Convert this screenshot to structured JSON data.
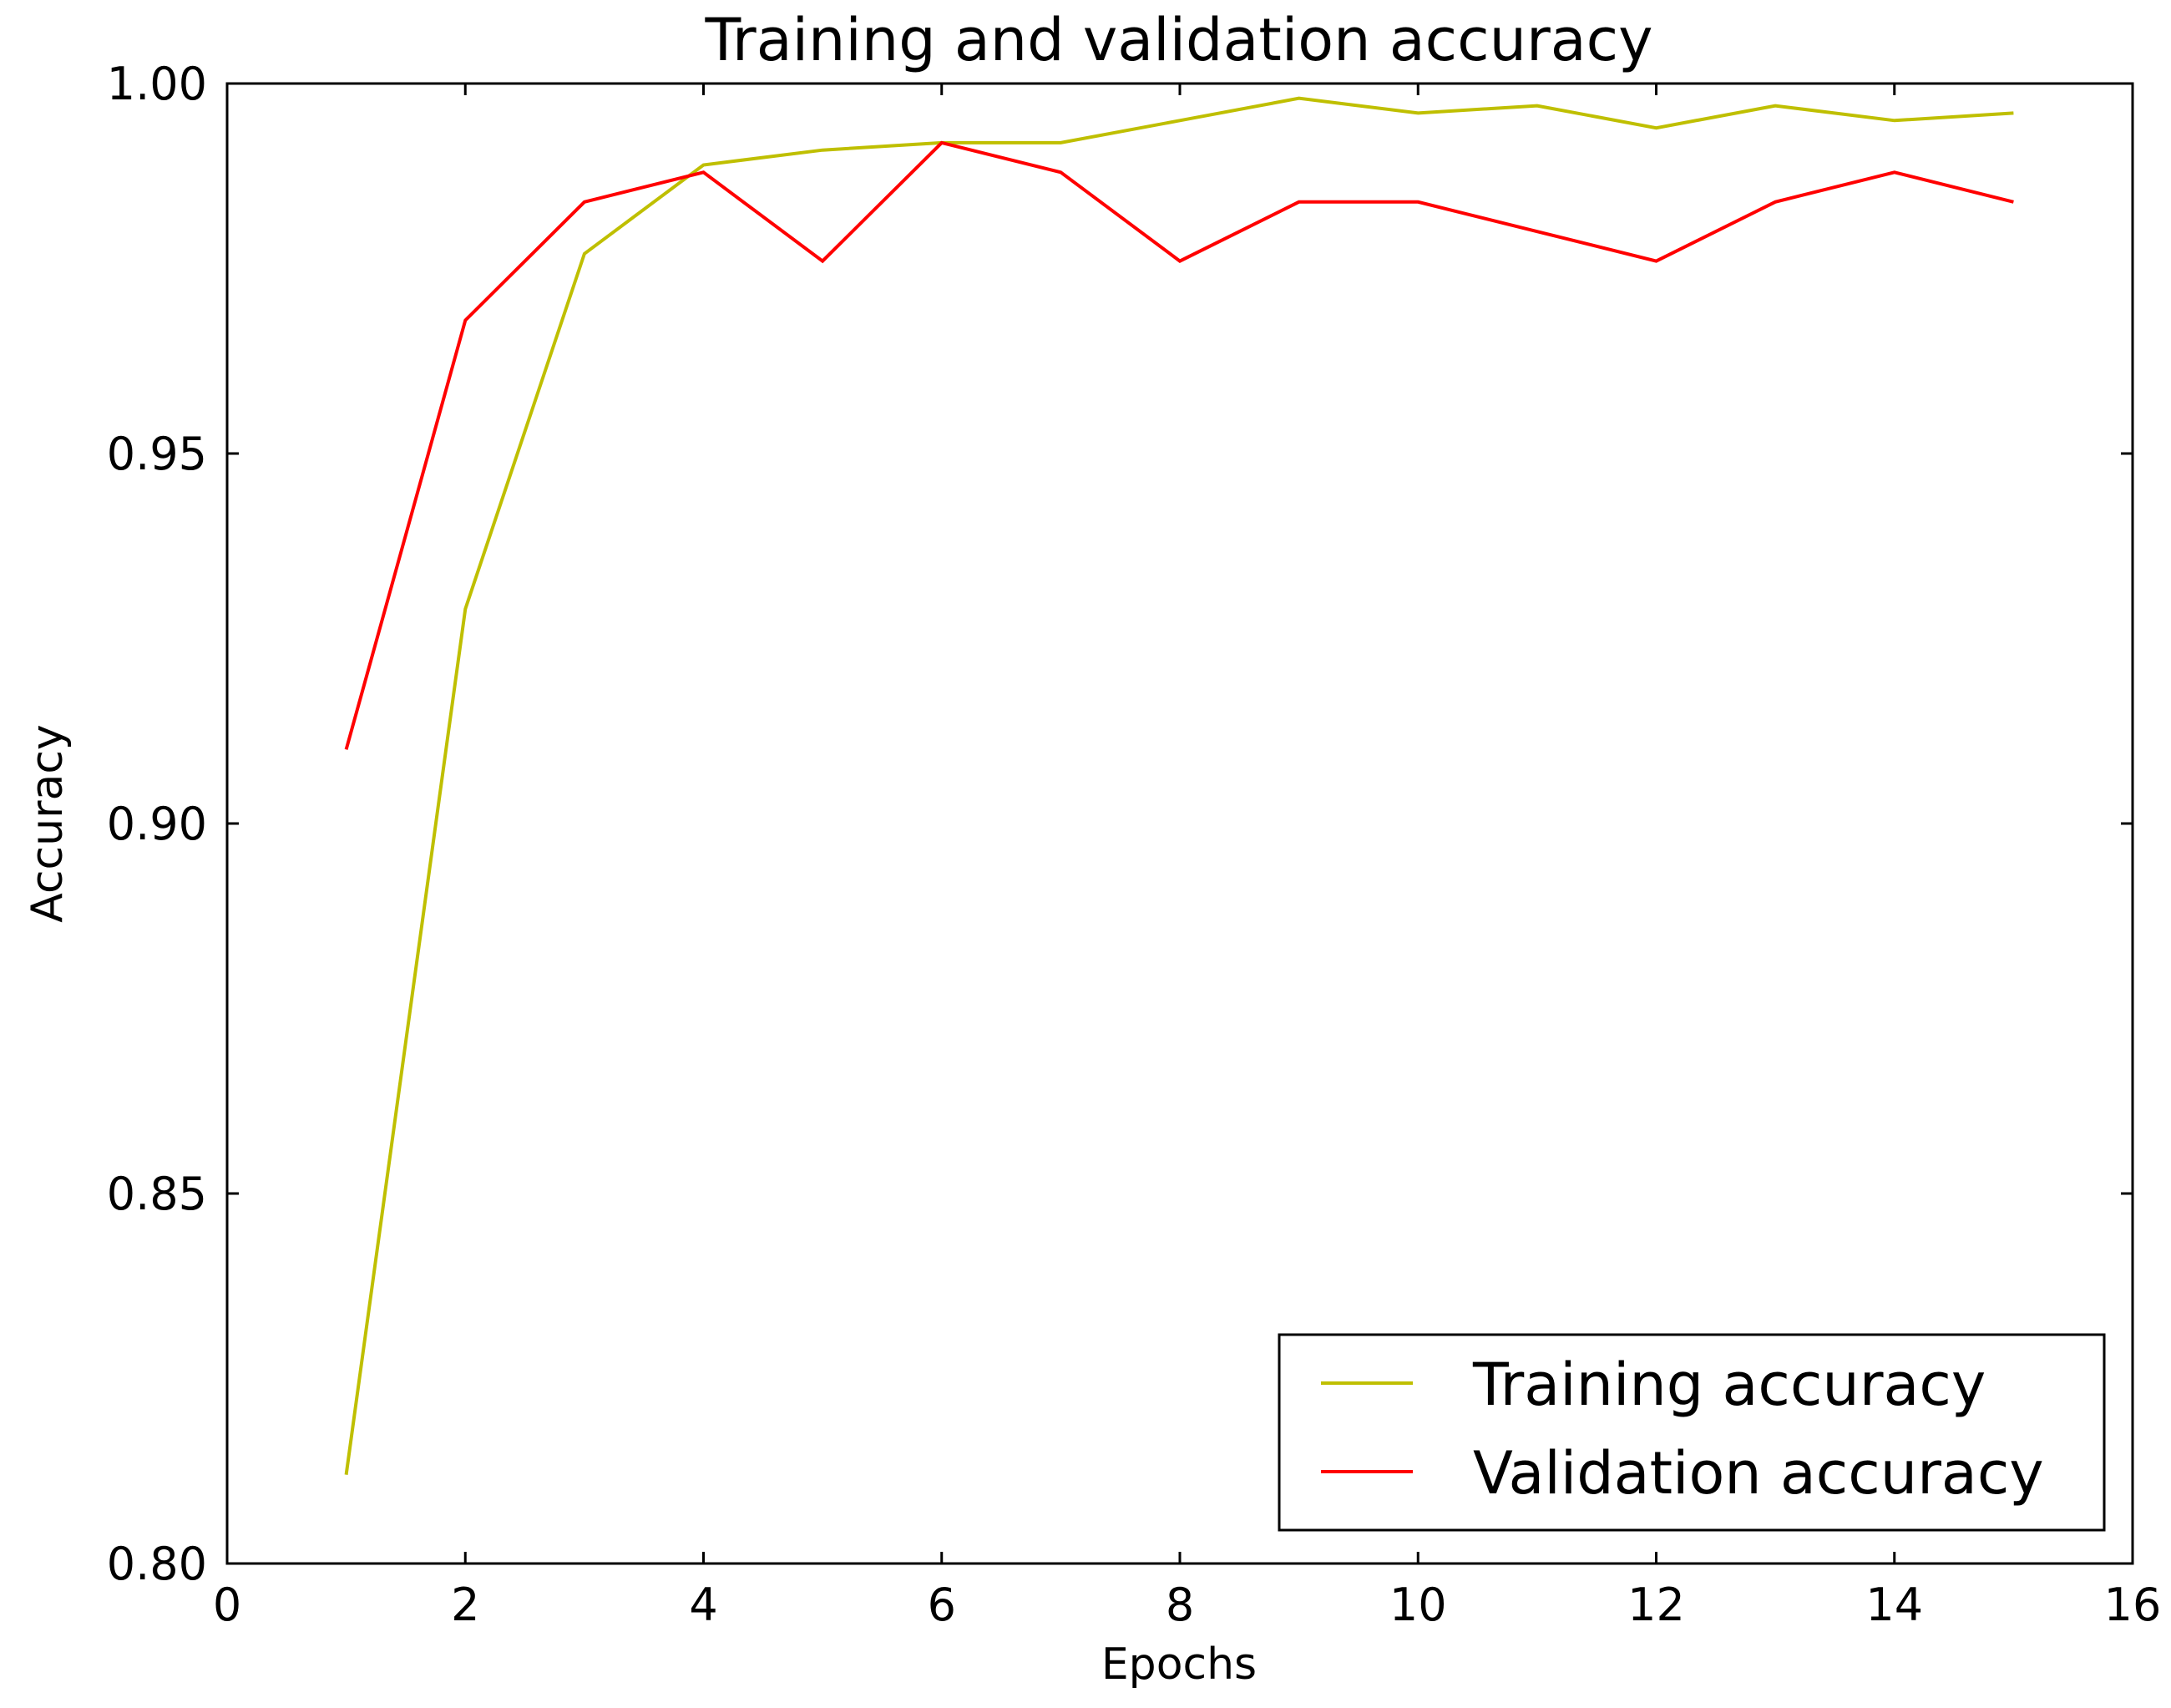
{
  "chart_data": {
    "type": "line",
    "title": "Training and validation accuracy",
    "xlabel": "Epochs",
    "ylabel": "Accuracy",
    "xlim": [
      0,
      16
    ],
    "ylim": [
      0.8,
      1.0
    ],
    "x_ticks": [
      0,
      2,
      4,
      6,
      8,
      10,
      12,
      14,
      16
    ],
    "x_tick_labels": [
      "0",
      "2",
      "4",
      "6",
      "8",
      "10",
      "12",
      "14",
      "16"
    ],
    "y_ticks": [
      0.8,
      0.85,
      0.9,
      0.95,
      1.0
    ],
    "y_tick_labels": [
      "0.80",
      "0.85",
      "0.90",
      "0.95",
      "1.00"
    ],
    "grid": false,
    "legend_position": "bottom-right",
    "x": [
      1,
      2,
      3,
      4,
      5,
      6,
      7,
      8,
      9,
      10,
      11,
      12,
      13,
      14,
      15
    ],
    "series": [
      {
        "name": "Training accuracy",
        "color": "#bfbf00",
        "values": [
          0.812,
          0.929,
          0.977,
          0.989,
          0.991,
          0.992,
          0.992,
          0.995,
          0.998,
          0.996,
          0.997,
          0.994,
          0.997,
          0.995,
          0.996
        ]
      },
      {
        "name": "Validation accuracy",
        "color": "#ff0000",
        "values": [
          0.91,
          0.968,
          0.984,
          0.988,
          0.976,
          0.992,
          0.988,
          0.976,
          0.984,
          0.984,
          0.98,
          0.976,
          0.984,
          0.988,
          0.984
        ]
      }
    ]
  }
}
